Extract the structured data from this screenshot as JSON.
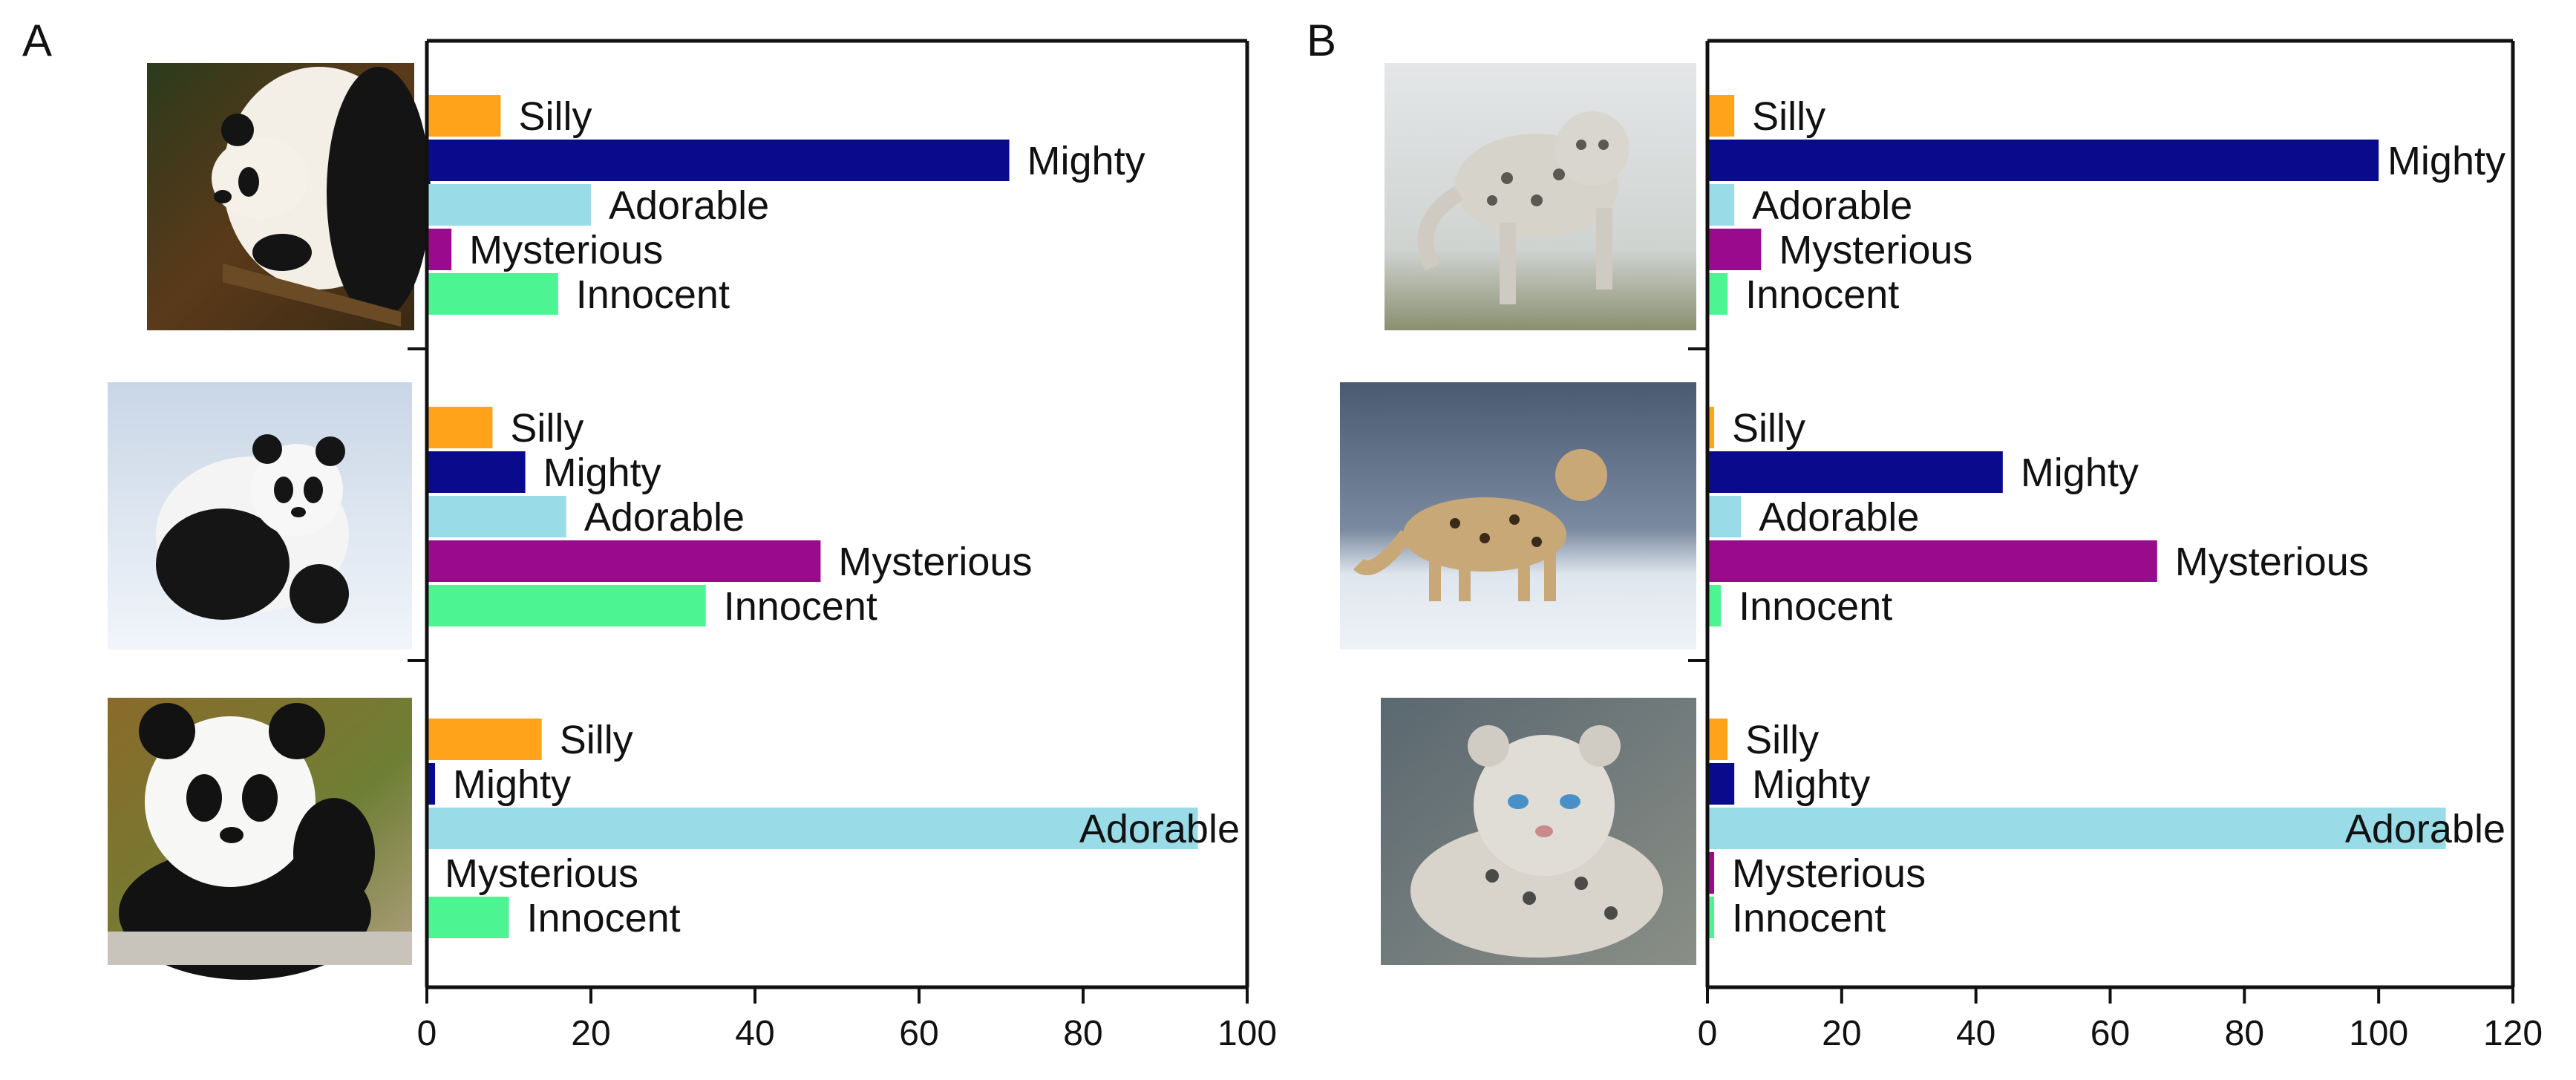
{
  "chart_data": [
    {
      "panel": "A",
      "type": "bar",
      "orientation": "horizontal",
      "animal": "giant panda",
      "xlim": [
        0,
        100
      ],
      "xticks": [
        "0",
        "20",
        "40",
        "60",
        "80",
        "100"
      ],
      "groups": [
        {
          "image": "panda-adult-icon",
          "bars": [
            {
              "label": "Silly",
              "value": 9,
              "color": "#FFA31A"
            },
            {
              "label": "Mighty",
              "value": 71,
              "color": "#0A0A8C"
            },
            {
              "label": "Adorable",
              "value": 20,
              "color": "#9ADBE8"
            },
            {
              "label": "Mysterious",
              "value": 3,
              "color": "#9A0A8C"
            },
            {
              "label": "Innocent",
              "value": 16,
              "color": "#4CF592"
            }
          ]
        },
        {
          "image": "panda-snow-icon",
          "bars": [
            {
              "label": "Silly",
              "value": 8,
              "color": "#FFA31A"
            },
            {
              "label": "Mighty",
              "value": 12,
              "color": "#0A0A8C"
            },
            {
              "label": "Adorable",
              "value": 17,
              "color": "#9ADBE8"
            },
            {
              "label": "Mysterious",
              "value": 48,
              "color": "#9A0A8C"
            },
            {
              "label": "Innocent",
              "value": 34,
              "color": "#4CF592"
            }
          ]
        },
        {
          "image": "panda-cub-icon",
          "bars": [
            {
              "label": "Silly",
              "value": 14,
              "color": "#FFA31A"
            },
            {
              "label": "Mighty",
              "value": 1,
              "color": "#0A0A8C"
            },
            {
              "label": "Adorable",
              "value": 94,
              "color": "#9ADBE8"
            },
            {
              "label": "Mysterious",
              "value": 0,
              "color": "#9A0A8C"
            },
            {
              "label": "Innocent",
              "value": 10,
              "color": "#4CF592"
            }
          ]
        }
      ]
    },
    {
      "panel": "B",
      "type": "bar",
      "orientation": "horizontal",
      "animal": "snow leopard",
      "xlim": [
        0,
        120
      ],
      "xticks": [
        "0",
        "20",
        "40",
        "60",
        "80",
        "100",
        "120"
      ],
      "groups": [
        {
          "image": "snow-leopard-leaping-icon",
          "bars": [
            {
              "label": "Silly",
              "value": 4,
              "color": "#FFA31A"
            },
            {
              "label": "Mighty",
              "value": 100,
              "color": "#0A0A8C"
            },
            {
              "label": "Adorable",
              "value": 4,
              "color": "#9ADBE8"
            },
            {
              "label": "Mysterious",
              "value": 8,
              "color": "#9A0A8C"
            },
            {
              "label": "Innocent",
              "value": 3,
              "color": "#4CF592"
            }
          ]
        },
        {
          "image": "snow-leopard-walking-icon",
          "bars": [
            {
              "label": "Silly",
              "value": 1,
              "color": "#FFA31A"
            },
            {
              "label": "Mighty",
              "value": 44,
              "color": "#0A0A8C"
            },
            {
              "label": "Adorable",
              "value": 5,
              "color": "#9ADBE8"
            },
            {
              "label": "Mysterious",
              "value": 67,
              "color": "#9A0A8C"
            },
            {
              "label": "Innocent",
              "value": 2,
              "color": "#4CF592"
            }
          ]
        },
        {
          "image": "snow-leopard-cub-icon",
          "bars": [
            {
              "label": "Silly",
              "value": 3,
              "color": "#FFA31A"
            },
            {
              "label": "Mighty",
              "value": 4,
              "color": "#0A0A8C"
            },
            {
              "label": "Adorable",
              "value": 110,
              "color": "#9ADBE8"
            },
            {
              "label": "Mysterious",
              "value": 1,
              "color": "#9A0A8C"
            },
            {
              "label": "Innocent",
              "value": 1,
              "color": "#4CF592"
            }
          ]
        }
      ]
    }
  ]
}
